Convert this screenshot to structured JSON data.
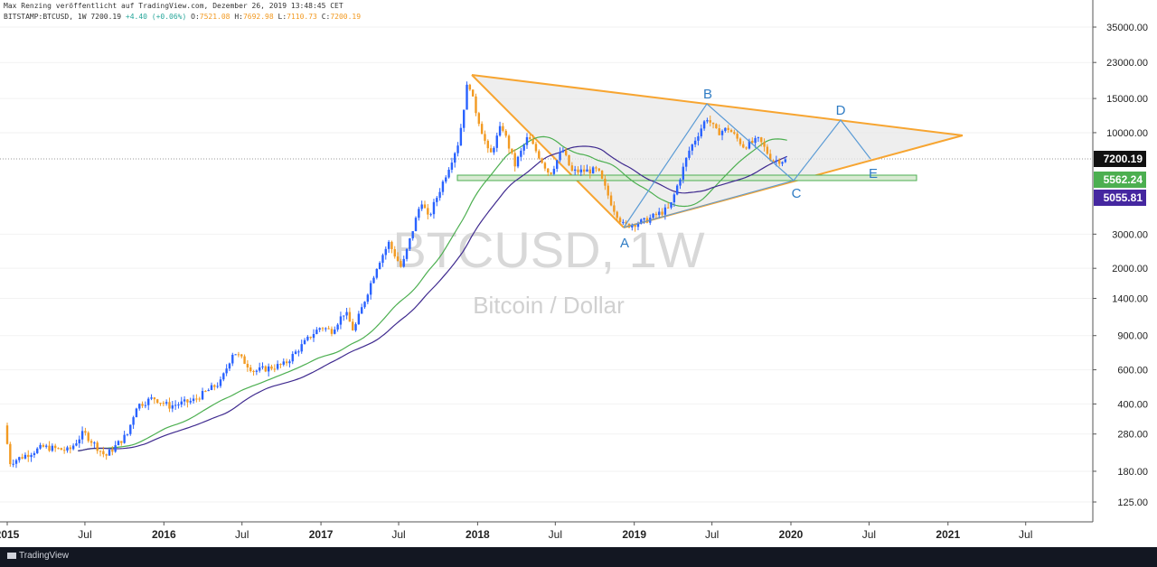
{
  "header": {
    "line1": "Max Renzing veröffentlicht auf TradingView.com, Dezember 26, 2019 13:48:45 CET",
    "symbol": "BITSTAMP:BTCUSD, 1W 7200.19",
    "change": "+4.40 (+0.06%)",
    "o_label": "O:",
    "o_value": "7521.08",
    "h_label": "H:",
    "h_value": "7692.98",
    "l_label": "L:",
    "l_value": "7110.73",
    "c_label": "C:",
    "c_value": "7200.19"
  },
  "watermark": {
    "symbol": "BTCUSD, 1W",
    "description": "Bitcoin / Dollar"
  },
  "footer": {
    "brand": "TradingView"
  },
  "colors": {
    "up": "#2962ff",
    "down": "#f29a22",
    "triangle": "#f7a531",
    "pattern": "#2f7cc4",
    "ma_green": "#4caf50",
    "ma_purple": "#3f2a8f",
    "support_fill": "#d9ead3",
    "support_stroke": "#4caf50"
  },
  "chart_data": {
    "type": "candlestick",
    "scale": "log",
    "y_ticks": [
      "35000.00",
      "23000.00",
      "15000.00",
      "10000.00",
      "3000.00",
      "2000.00",
      "1400.00",
      "900.00",
      "600.00",
      "400.00",
      "280.00",
      "180.00",
      "125.00"
    ],
    "x_ticks": [
      "2015",
      "Jul",
      "2016",
      "Jul",
      "2017",
      "Jul",
      "2018",
      "Jul",
      "2019",
      "Jul",
      "2020",
      "Jul",
      "2021",
      "Jul"
    ],
    "price_labels": [
      {
        "value": "7200.19",
        "style": "last"
      },
      {
        "value": "5562.24",
        "style": "green"
      },
      {
        "value": "5055.81",
        "style": "purple"
      }
    ],
    "pattern_labels": [
      "A",
      "B",
      "C",
      "D",
      "E"
    ],
    "keypoints": [
      {
        "date": "2015-01-01",
        "price": 310
      },
      {
        "date": "2015-01-15",
        "price": 200
      },
      {
        "date": "2015-04-01",
        "price": 240
      },
      {
        "date": "2015-06-01",
        "price": 230
      },
      {
        "date": "2015-07-05",
        "price": 285
      },
      {
        "date": "2015-08-25",
        "price": 215
      },
      {
        "date": "2015-10-15",
        "price": 280
      },
      {
        "date": "2015-11-05",
        "price": 390
      },
      {
        "date": "2015-12-15",
        "price": 430
      },
      {
        "date": "2016-01-20",
        "price": 390
      },
      {
        "date": "2016-03-15",
        "price": 415
      },
      {
        "date": "2016-05-20",
        "price": 520
      },
      {
        "date": "2016-06-18",
        "price": 750
      },
      {
        "date": "2016-08-05",
        "price": 590
      },
      {
        "date": "2016-10-15",
        "price": 640
      },
      {
        "date": "2016-12-20",
        "price": 920
      },
      {
        "date": "2017-01-08",
        "price": 1000
      },
      {
        "date": "2017-02-01",
        "price": 950
      },
      {
        "date": "2017-03-05",
        "price": 1200
      },
      {
        "date": "2017-03-25",
        "price": 950
      },
      {
        "date": "2017-05-20",
        "price": 2100
      },
      {
        "date": "2017-06-15",
        "price": 2700
      },
      {
        "date": "2017-07-15",
        "price": 2000
      },
      {
        "date": "2017-08-30",
        "price": 4500
      },
      {
        "date": "2017-09-15",
        "price": 3600
      },
      {
        "date": "2017-10-25",
        "price": 6000
      },
      {
        "date": "2017-11-25",
        "price": 9000
      },
      {
        "date": "2017-12-17",
        "price": 19000
      },
      {
        "date": "2017-12-31",
        "price": 13800
      },
      {
        "date": "2018-02-05",
        "price": 7500
      },
      {
        "date": "2018-03-05",
        "price": 11000
      },
      {
        "date": "2018-04-05",
        "price": 6800
      },
      {
        "date": "2018-05-05",
        "price": 9500
      },
      {
        "date": "2018-06-25",
        "price": 6100
      },
      {
        "date": "2018-07-25",
        "price": 8200
      },
      {
        "date": "2018-08-15",
        "price": 6300
      },
      {
        "date": "2018-10-15",
        "price": 6400
      },
      {
        "date": "2018-11-20",
        "price": 4100
      },
      {
        "date": "2018-12-15",
        "price": 3300
      },
      {
        "date": "2019-02-01",
        "price": 3500
      },
      {
        "date": "2019-04-01",
        "price": 4100
      },
      {
        "date": "2019-05-15",
        "price": 8000
      },
      {
        "date": "2019-06-26",
        "price": 12000
      },
      {
        "date": "2019-07-20",
        "price": 10000
      },
      {
        "date": "2019-08-15",
        "price": 10500
      },
      {
        "date": "2019-09-20",
        "price": 8500
      },
      {
        "date": "2019-10-26",
        "price": 9200
      },
      {
        "date": "2019-11-25",
        "price": 7200
      },
      {
        "date": "2019-12-23",
        "price": 7200
      }
    ]
  }
}
